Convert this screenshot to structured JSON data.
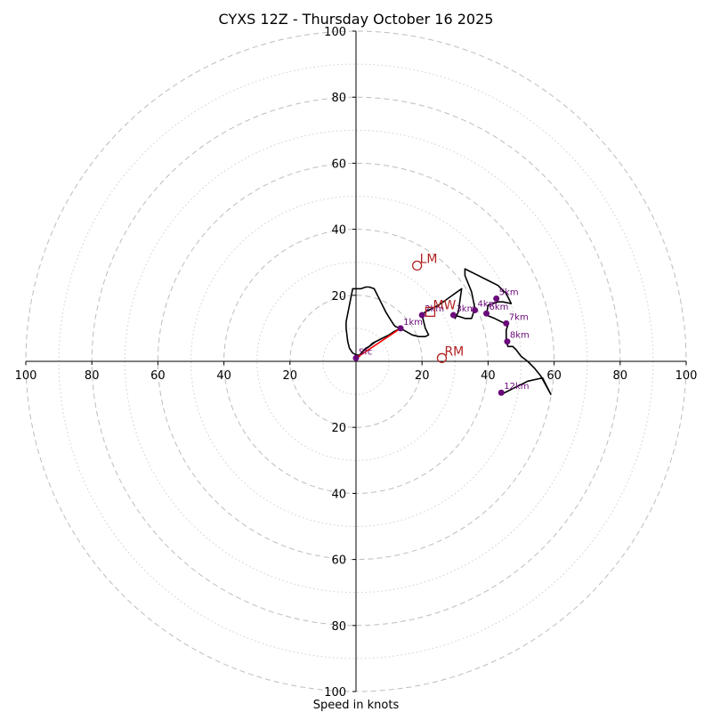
{
  "chart_data": {
    "type": "hodograph",
    "title": "CYXS 12Z - Thursday October 16 2025",
    "xlabel": "Speed in knots",
    "range": [
      -100,
      100
    ],
    "ring_major": [
      20,
      40,
      60,
      80,
      100
    ],
    "ring_minor": [
      10,
      30,
      50,
      70,
      90
    ],
    "x_tick_values": [
      -100,
      -80,
      -60,
      -40,
      -20,
      20,
      40,
      60,
      80,
      100
    ],
    "x_tick_labels": [
      "100",
      "80",
      "60",
      "40",
      "20",
      "20",
      "40",
      "60",
      "80",
      "100"
    ],
    "y_tick_values": [
      100,
      80,
      60,
      40,
      20,
      -20,
      -40,
      -60,
      -80,
      -100
    ],
    "y_tick_labels": [
      "100",
      "80",
      "60",
      "40",
      "20",
      "20",
      "40",
      "60",
      "80",
      "100"
    ],
    "trace": [
      [
        0,
        1
      ],
      [
        1,
        1.5
      ],
      [
        2,
        3
      ],
      [
        3,
        4
      ],
      [
        4,
        4.5
      ],
      [
        5,
        5.5
      ],
      [
        7,
        6.5
      ],
      [
        9,
        7.5
      ],
      [
        11,
        8.5
      ],
      [
        13.5,
        10
      ],
      [
        12,
        10.5
      ],
      [
        11.5,
        11
      ],
      [
        10.5,
        12.5
      ],
      [
        9,
        15
      ],
      [
        7.5,
        18
      ],
      [
        6,
        21
      ],
      [
        5.5,
        22
      ],
      [
        4,
        22.5
      ],
      [
        3,
        22.5
      ],
      [
        1.5,
        22
      ],
      [
        0,
        22
      ],
      [
        -1,
        22
      ],
      [
        -3,
        12
      ],
      [
        -3,
        10
      ],
      [
        -2.5,
        6
      ],
      [
        -2,
        4
      ],
      [
        -1,
        2.5
      ],
      [
        0,
        2
      ],
      [
        1,
        1.8
      ],
      [
        2,
        3
      ],
      [
        4,
        4.5
      ],
      [
        6,
        6
      ],
      [
        8,
        7
      ],
      [
        10,
        8
      ],
      [
        11.5,
        9
      ],
      [
        13.5,
        10
      ],
      [
        17,
        8
      ],
      [
        19,
        7.5
      ],
      [
        21,
        7.5
      ],
      [
        22,
        8
      ],
      [
        21,
        10
      ],
      [
        20,
        14
      ],
      [
        21,
        15
      ],
      [
        25,
        17
      ],
      [
        32,
        22
      ],
      [
        31,
        15
      ],
      [
        30,
        13
      ],
      [
        30,
        14
      ],
      [
        33,
        13
      ],
      [
        35,
        13
      ],
      [
        35.5,
        14.5
      ],
      [
        36,
        16
      ],
      [
        35,
        21
      ],
      [
        33,
        26
      ],
      [
        33,
        28
      ],
      [
        36,
        26.5
      ],
      [
        40,
        24.5
      ],
      [
        43,
        23
      ],
      [
        45.5,
        20.5
      ],
      [
        47,
        17.5
      ],
      [
        44.5,
        18
      ],
      [
        43,
        18
      ],
      [
        40,
        17
      ],
      [
        39.5,
        14
      ],
      [
        42,
        13
      ],
      [
        46,
        11
      ],
      [
        45.5,
        9.5
      ],
      [
        45.5,
        8
      ],
      [
        45.5,
        6
      ],
      [
        46,
        4.5
      ],
      [
        47.5,
        4.5
      ],
      [
        48.5,
        3.5
      ],
      [
        50,
        1.5
      ],
      [
        52,
        0
      ],
      [
        54,
        -2
      ],
      [
        56,
        -4.5
      ],
      [
        59,
        -10
      ],
      [
        56.5,
        -5
      ],
      [
        52,
        -6
      ],
      [
        48,
        -8
      ],
      [
        44,
        -10
      ]
    ],
    "red_segment": [
      [
        0,
        1
      ],
      [
        13.5,
        10
      ]
    ],
    "height_points": [
      {
        "label": "Sfc",
        "u": 0,
        "v": 1
      },
      {
        "label": "1km",
        "u": 13.5,
        "v": 10
      },
      {
        "label": "2km",
        "u": 20,
        "v": 14
      },
      {
        "label": "3km",
        "u": 29.5,
        "v": 14
      },
      {
        "label": "4km",
        "u": 36,
        "v": 15.5
      },
      {
        "label": "5km",
        "u": 42.5,
        "v": 19
      },
      {
        "label": "6km",
        "u": 39.5,
        "v": 14.5
      },
      {
        "label": "7km",
        "u": 45.5,
        "v": 11.5
      },
      {
        "label": "8km",
        "u": 45.8,
        "v": 6
      },
      {
        "label": "12km",
        "u": 44,
        "v": -9.5
      }
    ],
    "motion_vectors": [
      {
        "label": "LM",
        "u": 18.5,
        "v": 29,
        "marker": "circle"
      },
      {
        "label": "MW",
        "u": 22.5,
        "v": 15,
        "marker": "square"
      },
      {
        "label": "RM",
        "u": 26,
        "v": 1,
        "marker": "circle"
      }
    ]
  }
}
